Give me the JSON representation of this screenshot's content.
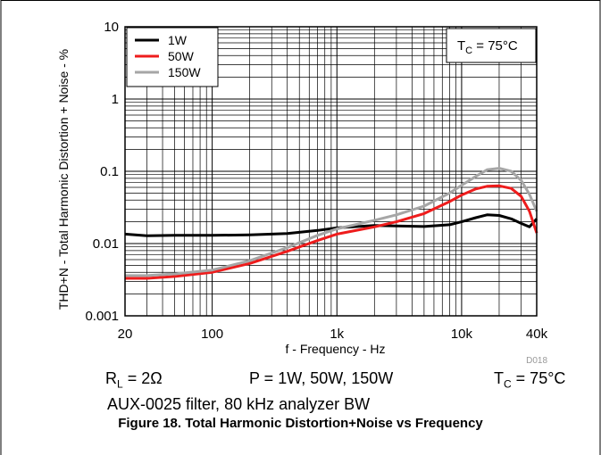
{
  "chart_data": {
    "type": "line",
    "x_scale": "log",
    "y_scale": "log",
    "xlim": [
      20,
      40000
    ],
    "ylim": [
      0.001,
      10
    ],
    "grid": true,
    "legend_position": "top-left",
    "xlabel": "f - Frequency - Hz",
    "ylabel": "THD+N - Total Harmonic Distortion + Noise - %",
    "x_ticks": [
      {
        "value": 20,
        "label": "20"
      },
      {
        "value": 100,
        "label": "100"
      },
      {
        "value": 1000,
        "label": "1k"
      },
      {
        "value": 10000,
        "label": "10k"
      },
      {
        "value": 40000,
        "label": "40k"
      }
    ],
    "y_ticks": [
      {
        "value": 0.001,
        "label": "0.001"
      },
      {
        "value": 0.01,
        "label": "0.01"
      },
      {
        "value": 0.1,
        "label": "0.1"
      },
      {
        "value": 1,
        "label": "1"
      },
      {
        "value": 10,
        "label": "10"
      }
    ],
    "annotation": {
      "main": "T",
      "sub": "C",
      "rest": " = 75°C"
    },
    "figure_id": "D018",
    "series": [
      {
        "name": "1W",
        "color": "#000000",
        "x": [
          20,
          30,
          50,
          100,
          200,
          400,
          700,
          1000,
          2000,
          3000,
          5000,
          8000,
          10000,
          13000,
          16000,
          20000,
          25000,
          30000,
          35000,
          40000
        ],
        "y": [
          0.0135,
          0.0128,
          0.013,
          0.013,
          0.0132,
          0.0138,
          0.0152,
          0.0165,
          0.0178,
          0.0175,
          0.0172,
          0.0182,
          0.02,
          0.0228,
          0.025,
          0.0245,
          0.022,
          0.019,
          0.017,
          0.022
        ]
      },
      {
        "name": "50W",
        "color": "#ee1c1c",
        "x": [
          20,
          30,
          50,
          100,
          200,
          400,
          700,
          1000,
          2000,
          3000,
          5000,
          8000,
          10000,
          13000,
          16000,
          20000,
          25000,
          30000,
          35000,
          40000
        ],
        "y": [
          0.0033,
          0.0033,
          0.0035,
          0.004,
          0.0053,
          0.0078,
          0.011,
          0.0135,
          0.017,
          0.02,
          0.026,
          0.038,
          0.047,
          0.057,
          0.062,
          0.063,
          0.058,
          0.045,
          0.028,
          0.014
        ]
      },
      {
        "name": "150W",
        "color": "#a6a6a6",
        "x": [
          20,
          30,
          50,
          100,
          200,
          400,
          700,
          1000,
          2000,
          3000,
          5000,
          8000,
          10000,
          13000,
          16000,
          20000,
          25000,
          30000,
          35000,
          40000
        ],
        "y": [
          0.0036,
          0.0036,
          0.0038,
          0.0043,
          0.0058,
          0.0088,
          0.013,
          0.016,
          0.021,
          0.025,
          0.033,
          0.05,
          0.064,
          0.085,
          0.105,
          0.11,
          0.1,
          0.075,
          0.048,
          0.028
        ]
      }
    ]
  },
  "conditions": {
    "rl_main": "R",
    "rl_sub": "L",
    "rl_rest": " = 2Ω",
    "power": "P = 1W, 50W, 150W",
    "tc_main": "T",
    "tc_sub": "C",
    "tc_rest": " = 75°C",
    "filter": "AUX-0025 filter, 80 kHz analyzer BW"
  },
  "caption": "Figure 18. Total Harmonic Distortion+Noise vs Frequency"
}
